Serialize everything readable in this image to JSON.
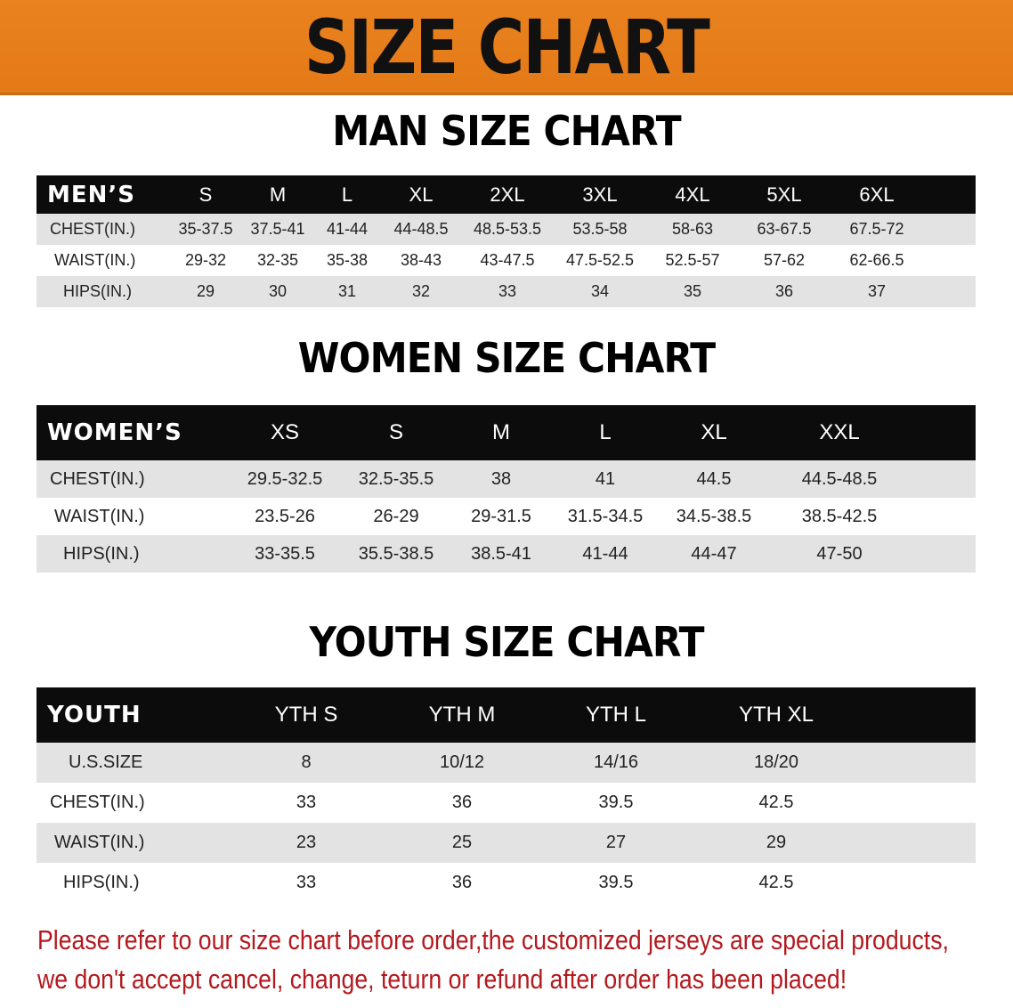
{
  "title": "SIZE CHART",
  "colors": {
    "banner": "#e8811e",
    "header_row": "#0c0c0c",
    "stripe": "#e3e3e3",
    "note": "#b3191e"
  },
  "men": {
    "title": "MAN SIZE CHART",
    "header": [
      "MEN’S",
      "S",
      "M",
      "L",
      "XL",
      "2XL",
      "3XL",
      "4XL",
      "5XL",
      "6XL"
    ],
    "rows": [
      [
        "CHEST(IN.)",
        "35-37.5",
        "37.5-41",
        "41-44",
        "44-48.5",
        "48.5-53.5",
        "53.5-58",
        "58-63",
        "63-67.5",
        "67.5-72"
      ],
      [
        "WAIST(IN.)",
        "29-32",
        "32-35",
        "35-38",
        "38-43",
        "43-47.5",
        "47.5-52.5",
        "52.5-57",
        "57-62",
        "62-66.5"
      ],
      [
        "HIPS(IN.)",
        "29",
        "30",
        "31",
        "32",
        "33",
        "34",
        "35",
        "36",
        "37"
      ]
    ]
  },
  "women": {
    "title": "WOMEN SIZE CHART",
    "header": [
      "WOMEN’S",
      "XS",
      "S",
      "M",
      "L",
      "XL",
      "XXL"
    ],
    "rows": [
      [
        "CHEST(IN.)",
        "29.5-32.5",
        "32.5-35.5",
        "38",
        "41",
        "44.5",
        "44.5-48.5"
      ],
      [
        "WAIST(IN.)",
        "23.5-26",
        "26-29",
        "29-31.5",
        "31.5-34.5",
        "34.5-38.5",
        "38.5-42.5"
      ],
      [
        "HIPS(IN.)",
        "33-35.5",
        "35.5-38.5",
        "38.5-41",
        "41-44",
        "44-47",
        "47-50"
      ]
    ]
  },
  "youth": {
    "title": "YOUTH SIZE CHART",
    "header": [
      "YOUTH",
      "YTH S",
      "YTH M",
      "YTH L",
      "YTH XL"
    ],
    "rows": [
      [
        "U.S.SIZE",
        "8",
        "10/12",
        "14/16",
        "18/20"
      ],
      [
        "CHEST(IN.)",
        "33",
        "36",
        "39.5",
        "42.5"
      ],
      [
        "WAIST(IN.)",
        "23",
        "25",
        "27",
        "29"
      ],
      [
        "HIPS(IN.)",
        "33",
        "36",
        "39.5",
        "42.5"
      ]
    ]
  },
  "note": {
    "line1": "Please refer to our size chart before order,the customized jerseys are special products,",
    "line2": "we don't accept cancel, change, teturn or refund after order has been placed!"
  }
}
